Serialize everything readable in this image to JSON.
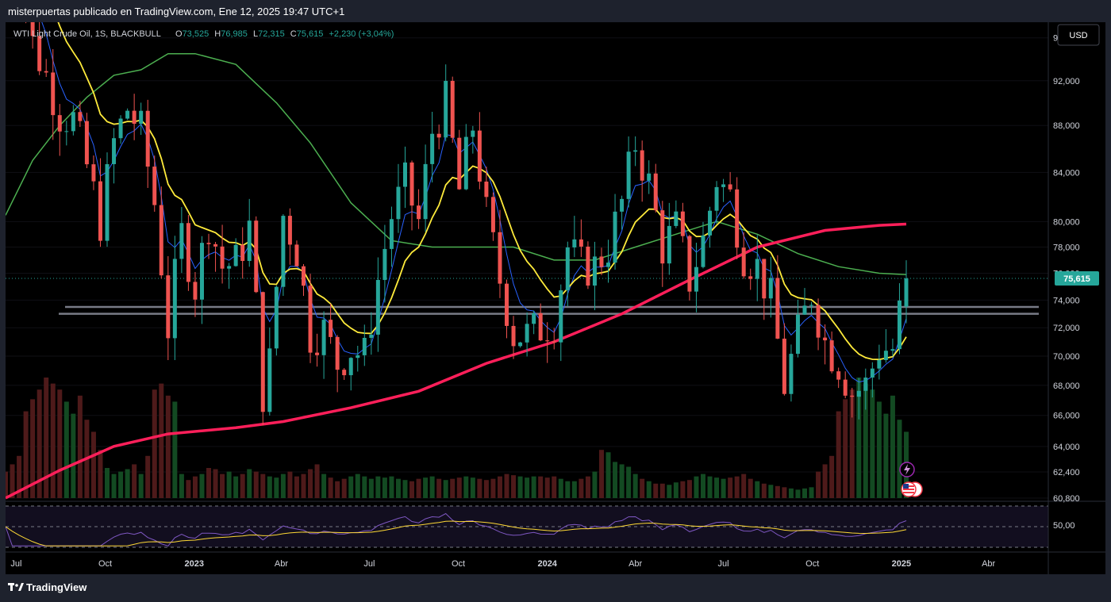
{
  "header": {
    "attribution": "misterpuertas publicado en TradingView.com, Ene 12, 2025 19:47 UTC+1"
  },
  "legend": {
    "symbol": "WTI Light Crude Oil, 1S, BLACKBULL",
    "o_label": "O",
    "o_value": "73,525",
    "h_label": "H",
    "h_value": "76,985",
    "l_label": "L",
    "l_value": "72,315",
    "c_label": "C",
    "c_value": "75,615",
    "change": "+2,230 (+3,04%)"
  },
  "currency_button": "USD",
  "price_label": "75,615",
  "rsi_label": "50,00",
  "footer": {
    "brand": "TradingView"
  },
  "colors": {
    "up": "#26a69a",
    "down": "#ef5350",
    "vol_up": "#134a22",
    "vol_down": "#4e1a1a",
    "ema_fast": "#2962ff",
    "ema_mid": "#ffeb3b",
    "ma_green": "#4caf50",
    "ma_slow": "#ff1f5a",
    "rsi": "#7e57c2",
    "rsi_ma": "#fdd835",
    "price_badge": "#26a69a"
  },
  "icons": [
    "lightning-event-icon",
    "us-flag-event-icon"
  ],
  "chart_data": {
    "type": "candlestick",
    "title": "WTI Light Crude Oil, 1S, BLACKBULL",
    "y_axis": {
      "ticks": [
        "96,000",
        "92,000",
        "88,000",
        "84,000",
        "80,000",
        "78,000",
        "76,000",
        "74,000",
        "72,000",
        "70,000",
        "68,000",
        "66,000",
        "64,000",
        "62,400",
        "60,800"
      ],
      "scale": "log"
    },
    "x_axis": {
      "ticks": [
        "Jul",
        "Oct",
        "2023",
        "Abr",
        "Jul",
        "Oct",
        "2024",
        "Abr",
        "Jul",
        "Oct",
        "2025",
        "Abr"
      ]
    },
    "ylim": [
      60.8,
      97.5
    ],
    "horizontal_levels": [
      73.5,
      73.0
    ],
    "current_price": 75.615,
    "anchors": [
      {
        "date": "2022-06-20",
        "close": 107.5
      },
      {
        "date": "2022-07-04",
        "close": 104.0
      },
      {
        "date": "2022-07-18",
        "close": 95.5
      },
      {
        "date": "2022-08-01",
        "close": 92.5
      },
      {
        "date": "2022-08-15",
        "close": 89.0
      },
      {
        "date": "2022-08-29",
        "close": 88.5
      },
      {
        "date": "2022-09-12",
        "close": 84.5
      },
      {
        "date": "2022-09-26",
        "close": 80.0
      },
      {
        "date": "2022-10-10",
        "close": 86.5
      },
      {
        "date": "2022-10-24",
        "close": 89.5
      },
      {
        "date": "2022-11-07",
        "close": 87.5
      },
      {
        "date": "2022-11-21",
        "close": 81.5
      },
      {
        "date": "2022-12-05",
        "close": 72.0
      },
      {
        "date": "2022-12-19",
        "close": 79.0
      },
      {
        "date": "2023-01-02",
        "close": 75.0
      },
      {
        "date": "2023-01-16",
        "close": 80.0
      },
      {
        "date": "2023-01-30",
        "close": 76.5
      },
      {
        "date": "2023-02-13",
        "close": 76.8
      },
      {
        "date": "2023-02-27",
        "close": 79.5
      },
      {
        "date": "2023-03-13",
        "close": 67.5
      },
      {
        "date": "2023-03-20",
        "close": 69.5
      },
      {
        "date": "2023-04-03",
        "close": 80.5
      },
      {
        "date": "2023-04-17",
        "close": 77.8
      },
      {
        "date": "2023-05-01",
        "close": 71.5
      },
      {
        "date": "2023-05-15",
        "close": 71.8
      },
      {
        "date": "2023-05-29",
        "close": 69.5
      },
      {
        "date": "2023-06-12",
        "close": 70.5
      },
      {
        "date": "2023-06-26",
        "close": 70.0
      },
      {
        "date": "2023-07-10",
        "close": 75.5
      },
      {
        "date": "2023-07-24",
        "close": 80.5
      },
      {
        "date": "2023-08-07",
        "close": 83.0
      },
      {
        "date": "2023-08-21",
        "close": 80.0
      },
      {
        "date": "2023-09-04",
        "close": 87.5
      },
      {
        "date": "2023-09-18",
        "close": 90.0
      },
      {
        "date": "2023-10-02",
        "close": 82.5
      },
      {
        "date": "2023-10-16",
        "close": 88.0
      },
      {
        "date": "2023-10-30",
        "close": 80.5
      },
      {
        "date": "2023-11-13",
        "close": 75.5
      },
      {
        "date": "2023-11-27",
        "close": 71.5
      },
      {
        "date": "2023-12-11",
        "close": 71.5
      },
      {
        "date": "2023-12-25",
        "close": 72.0
      },
      {
        "date": "2024-01-08",
        "close": 72.5
      },
      {
        "date": "2024-01-22",
        "close": 78.0
      },
      {
        "date": "2024-02-05",
        "close": 76.5
      },
      {
        "date": "2024-02-19",
        "close": 76.5
      },
      {
        "date": "2024-03-04",
        "close": 78.0
      },
      {
        "date": "2024-03-18",
        "close": 81.5
      },
      {
        "date": "2024-04-01",
        "close": 86.5
      },
      {
        "date": "2024-04-15",
        "close": 83.0
      },
      {
        "date": "2024-04-29",
        "close": 78.0
      },
      {
        "date": "2024-05-13",
        "close": 79.5
      },
      {
        "date": "2024-05-27",
        "close": 75.5
      },
      {
        "date": "2024-06-10",
        "close": 78.5
      },
      {
        "date": "2024-06-24",
        "close": 83.5
      },
      {
        "date": "2024-07-08",
        "close": 82.0
      },
      {
        "date": "2024-07-22",
        "close": 77.5
      },
      {
        "date": "2024-08-05",
        "close": 76.5
      },
      {
        "date": "2024-08-19",
        "close": 74.0
      },
      {
        "date": "2024-09-02",
        "close": 68.0
      },
      {
        "date": "2024-09-16",
        "close": 71.5
      },
      {
        "date": "2024-09-30",
        "close": 74.5
      },
      {
        "date": "2024-10-14",
        "close": 71.0
      },
      {
        "date": "2024-10-28",
        "close": 69.5
      },
      {
        "date": "2024-11-11",
        "close": 67.5
      },
      {
        "date": "2024-11-25",
        "close": 68.0
      },
      {
        "date": "2024-12-09",
        "close": 70.5
      },
      {
        "date": "2024-12-23",
        "close": 70.5
      },
      {
        "date": "2025-01-06",
        "close": 75.6
      }
    ],
    "ma_green_points": [
      {
        "date": "2022-06-20",
        "value": 80.5
      },
      {
        "date": "2022-07-18",
        "value": 85.0
      },
      {
        "date": "2022-08-15",
        "value": 88.0
      },
      {
        "date": "2022-09-12",
        "value": 90.5
      },
      {
        "date": "2022-10-10",
        "value": 92.5
      },
      {
        "date": "2022-11-07",
        "value": 93.0
      },
      {
        "date": "2022-12-05",
        "value": 94.5
      },
      {
        "date": "2023-01-02",
        "value": 94.5
      },
      {
        "date": "2023-02-13",
        "value": 93.5
      },
      {
        "date": "2023-03-27",
        "value": 90.0
      },
      {
        "date": "2023-05-01",
        "value": 86.5
      },
      {
        "date": "2023-06-12",
        "value": 81.5
      },
      {
        "date": "2023-07-24",
        "value": 78.5
      },
      {
        "date": "2023-09-04",
        "value": 78.0
      },
      {
        "date": "2023-10-16",
        "value": 78.0
      },
      {
        "date": "2023-11-27",
        "value": 78.0
      },
      {
        "date": "2024-01-08",
        "value": 77.0
      },
      {
        "date": "2024-02-19",
        "value": 77.0
      },
      {
        "date": "2024-04-01",
        "value": 78.0
      },
      {
        "date": "2024-05-13",
        "value": 79.0
      },
      {
        "date": "2024-06-24",
        "value": 80.0
      },
      {
        "date": "2024-08-05",
        "value": 79.0
      },
      {
        "date": "2024-09-16",
        "value": 77.5
      },
      {
        "date": "2024-10-28",
        "value": 76.5
      },
      {
        "date": "2024-12-09",
        "value": 76.0
      },
      {
        "date": "2025-01-06",
        "value": 75.9
      }
    ],
    "ma_slow_points": [
      {
        "date": "2022-06-20",
        "value": 60.8
      },
      {
        "date": "2022-08-15",
        "value": 62.5
      },
      {
        "date": "2022-10-10",
        "value": 64.0
      },
      {
        "date": "2022-12-05",
        "value": 64.8
      },
      {
        "date": "2023-02-13",
        "value": 65.2
      },
      {
        "date": "2023-04-03",
        "value": 65.6
      },
      {
        "date": "2023-06-12",
        "value": 66.5
      },
      {
        "date": "2023-08-21",
        "value": 67.6
      },
      {
        "date": "2023-10-30",
        "value": 69.5
      },
      {
        "date": "2024-01-08",
        "value": 71.0
      },
      {
        "date": "2024-03-18",
        "value": 73.0
      },
      {
        "date": "2024-05-27",
        "value": 75.5
      },
      {
        "date": "2024-08-05",
        "value": 78.0
      },
      {
        "date": "2024-10-14",
        "value": 79.3
      },
      {
        "date": "2024-12-09",
        "value": 79.7
      },
      {
        "date": "2025-01-06",
        "value": 79.8
      }
    ],
    "volume_relative": [
      0.22,
      0.28,
      0.35,
      0.72,
      0.82,
      0.9,
      1.0,
      0.95,
      0.9,
      0.8,
      0.7,
      0.85,
      0.65,
      0.55,
      0.4,
      0.25,
      0.2,
      0.22,
      0.24,
      0.28,
      0.2,
      0.35,
      0.9,
      0.95,
      0.85,
      0.8,
      0.2,
      0.15,
      0.18,
      0.2,
      0.25,
      0.24,
      0.2,
      0.22,
      0.18,
      0.2,
      0.24,
      0.22,
      0.2,
      0.18,
      0.17,
      0.2,
      0.22,
      0.18,
      0.2,
      0.24,
      0.28,
      0.2,
      0.17,
      0.14,
      0.16,
      0.18,
      0.2,
      0.18,
      0.16,
      0.18,
      0.17,
      0.18,
      0.16,
      0.15,
      0.14,
      0.16,
      0.17,
      0.18,
      0.16,
      0.15,
      0.16,
      0.17,
      0.18,
      0.17,
      0.16,
      0.15,
      0.16,
      0.18,
      0.2,
      0.19,
      0.18,
      0.17,
      0.18,
      0.18,
      0.17,
      0.18,
      0.16,
      0.14,
      0.14,
      0.16,
      0.18,
      0.22,
      0.4,
      0.38,
      0.3,
      0.28,
      0.26,
      0.2,
      0.16,
      0.14,
      0.12,
      0.12,
      0.11,
      0.13,
      0.14,
      0.15,
      0.18,
      0.2,
      0.18,
      0.17,
      0.16,
      0.17,
      0.18,
      0.2,
      0.16,
      0.14,
      0.12,
      0.11,
      0.1,
      0.09,
      0.08,
      0.07,
      0.08,
      0.09
    ]
  }
}
